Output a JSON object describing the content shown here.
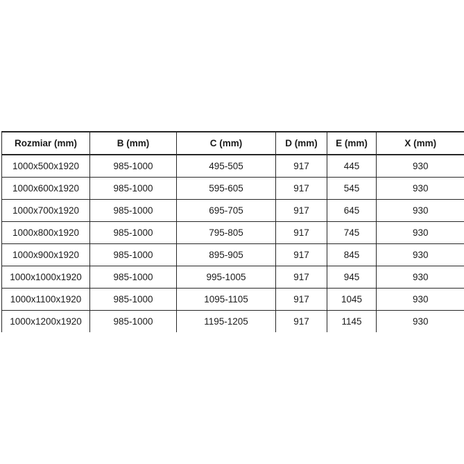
{
  "colors": {
    "background": "#ffffff",
    "border": "#262626",
    "text": "#1a1a1a"
  },
  "chart_data": {
    "type": "table",
    "title": "",
    "columns": [
      "Rozmiar (mm)",
      "B (mm)",
      "C (mm)",
      "D (mm)",
      "E (mm)",
      "X (mm)"
    ],
    "rows": [
      [
        "1000x500x1920",
        "985-1000",
        "495-505",
        "917",
        "445",
        "930"
      ],
      [
        "1000x600x1920",
        "985-1000",
        "595-605",
        "917",
        "545",
        "930"
      ],
      [
        "1000x700x1920",
        "985-1000",
        "695-705",
        "917",
        "645",
        "930"
      ],
      [
        "1000x800x1920",
        "985-1000",
        "795-805",
        "917",
        "745",
        "930"
      ],
      [
        "1000x900x1920",
        "985-1000",
        "895-905",
        "917",
        "845",
        "930"
      ],
      [
        "1000x1000x1920",
        "985-1000",
        "995-1005",
        "917",
        "945",
        "930"
      ],
      [
        "1000x1100x1920",
        "985-1000",
        "1095-1105",
        "917",
        "1045",
        "930"
      ],
      [
        "1000x1200x1920",
        "985-1000",
        "1195-1205",
        "917",
        "1145",
        "930"
      ]
    ]
  }
}
